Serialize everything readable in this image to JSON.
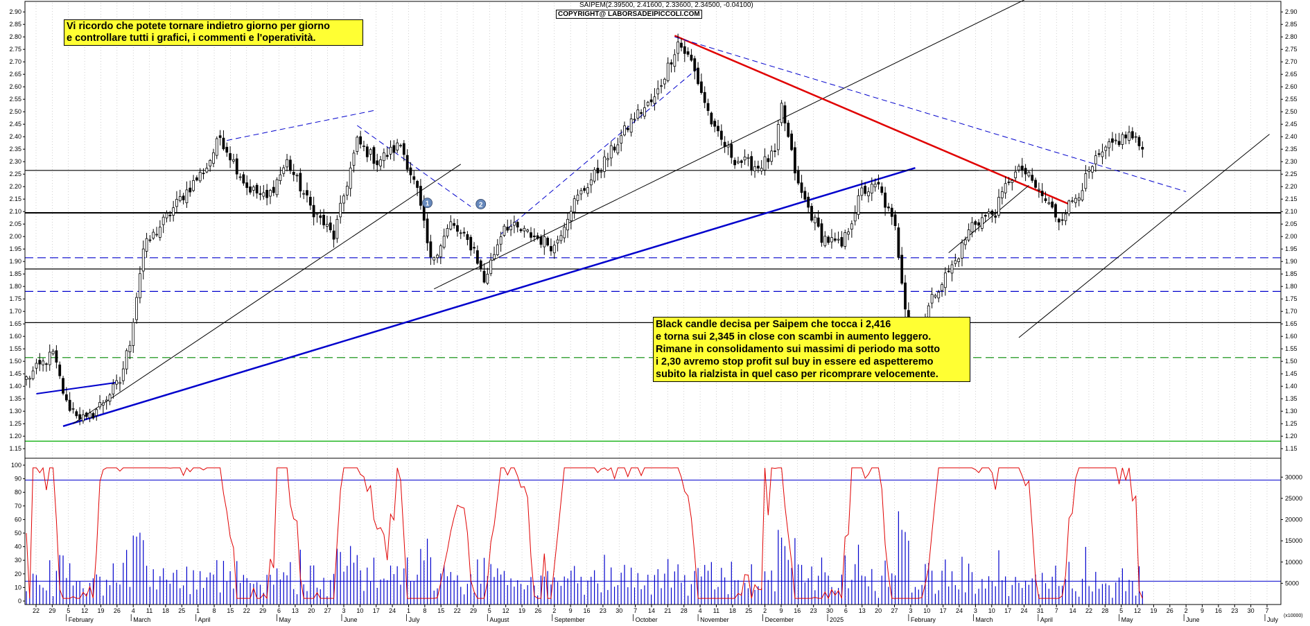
{
  "header": {
    "quote": "SAIPEM(2.39500, 2.41600, 2.33600, 2.34500, -0.04100)",
    "copyright": "COPYRIGHT@ LABORSADEIPICCOLI.COM"
  },
  "notes": {
    "top_line1": "Vi ricordo che potete tornare indietro giorno per giorno",
    "top_line2": "e controllare tutti i grafici, i commenti e l'operatività.",
    "mid_lines": [
      "Black candle decisa per Saipem che tocca i 2,416",
      "e torna sui 2,345 in close con scambi in aumento leggero.",
      "Rimane in consolidamento sui massimi di periodo ma sotto",
      "i 2,30 avremo stop profit sul buy in essere ed aspetteremo",
      "subito la rialzista in quel caso per ricomprare velocemente."
    ]
  },
  "colors": {
    "candle": "#000000",
    "blue_line": "#0000cc",
    "red_line": "#e00000",
    "oscillator": "#e00000",
    "volume": "#0000cc",
    "green_dash": "#008800",
    "green_line": "#00aa00"
  },
  "chart_data": [
    {
      "type": "candlestick",
      "title": "",
      "y_ticks": [
        "2.90",
        "2.85",
        "2.80",
        "2.75",
        "2.70",
        "2.65",
        "2.60",
        "2.55",
        "2.50",
        "2.45",
        "2.40",
        "2.35",
        "2.30",
        "2.25",
        "2.20",
        "2.15",
        "2.10",
        "2.05",
        "2.00",
        "1.95",
        "1.90",
        "1.85",
        "1.80",
        "1.75",
        "1.70",
        "1.65",
        "1.60",
        "1.55",
        "1.50",
        "1.45",
        "1.40",
        "1.35",
        "1.30",
        "1.25",
        "1.20",
        "1.15"
      ],
      "ylim": [
        1.12,
        2.92
      ],
      "x_day_ticks": [
        "22",
        "29",
        "5",
        "12",
        "19",
        "26",
        "4",
        "11",
        "18",
        "25",
        "1",
        "8",
        "15",
        "22",
        "29",
        "6",
        "13",
        "20",
        "27",
        "3",
        "10",
        "17",
        "24",
        "1",
        "8",
        "15",
        "22",
        "29",
        "5",
        "12",
        "19",
        "26",
        "2",
        "9",
        "16",
        "23",
        "30",
        "7",
        "14",
        "21",
        "28",
        "4",
        "11",
        "18",
        "25",
        "2",
        "9",
        "16",
        "23",
        "30",
        "6",
        "13",
        "20",
        "27",
        "3",
        "10",
        "17",
        "24",
        "3",
        "10",
        "17",
        "24",
        "31",
        "7",
        "14",
        "22",
        "28",
        "5",
        "12",
        "19",
        "26",
        "2",
        "9",
        "16",
        "23",
        "30",
        "7"
      ],
      "x_month_labels": [
        "February",
        "March",
        "April",
        "May",
        "June",
        "July",
        "August",
        "September",
        "October",
        "November",
        "December",
        "2025",
        "February",
        "March",
        "April",
        "May",
        "June",
        "July"
      ],
      "horizontal_levels": [
        {
          "price": 2.265,
          "style": "solid",
          "color": "#000000"
        },
        {
          "price": 2.095,
          "style": "solid",
          "color": "#000000",
          "thick": true
        },
        {
          "price": 1.915,
          "style": "dashed",
          "color": "#0000cc"
        },
        {
          "price": 1.87,
          "style": "solid",
          "color": "#000000"
        },
        {
          "price": 1.78,
          "style": "dashed",
          "color": "#0000cc"
        },
        {
          "price": 1.655,
          "style": "solid",
          "color": "#000000"
        },
        {
          "price": 1.515,
          "style": "dashed",
          "color": "#008800"
        },
        {
          "price": 1.18,
          "style": "solid",
          "color": "#00aa00"
        }
      ],
      "trendlines": [
        {
          "from": [
            3,
            1.37
          ],
          "to": [
            27,
            1.415
          ],
          "color": "#0000cc",
          "width": 2
        },
        {
          "from": [
            11,
            1.24
          ],
          "to": [
            266,
            2.275
          ],
          "color": "#0000cc",
          "width": 2.5
        },
        {
          "from": [
            14,
            1.25
          ],
          "to": [
            130,
            2.29
          ],
          "color": "#000000",
          "width": 1
        },
        {
          "from": [
            122,
            1.79
          ],
          "to": [
            305,
            2.99
          ],
          "color": "#000000",
          "width": 1
        },
        {
          "from": [
            194,
            2.805
          ],
          "to": [
            312,
            2.13
          ],
          "color": "#e00000",
          "width": 2.5
        },
        {
          "from": [
            194,
            2.8
          ],
          "to": [
            347,
            2.18
          ],
          "color": "#0000cc",
          "width": 1,
          "dash": true
        },
        {
          "from": [
            60,
            2.385
          ],
          "to": [
            104,
            2.505
          ],
          "color": "#0000cc",
          "width": 1,
          "dash": true
        },
        {
          "from": [
            99,
            2.445
          ],
          "to": [
            133,
            2.12
          ],
          "color": "#0000cc",
          "width": 1,
          "dash": true
        },
        {
          "from": [
            142,
            2.01
          ],
          "to": [
            201,
            2.675
          ],
          "color": "#0000cc",
          "width": 1,
          "dash": true
        },
        {
          "from": [
            276,
            1.935
          ],
          "to": [
            300,
            2.205
          ],
          "color": "#000000",
          "width": 1
        },
        {
          "from": [
            297,
            1.595
          ],
          "to": [
            372,
            2.41
          ],
          "color": "#000000",
          "width": 1
        },
        {
          "from": [
            250,
            2.265
          ],
          "to": [
            285,
            2.265
          ],
          "color": "#000000",
          "width": 1
        }
      ],
      "markers": [
        {
          "label": "1",
          "x": 120,
          "price": 2.135
        },
        {
          "label": "2",
          "x": 136,
          "price": 2.13
        }
      ]
    },
    {
      "type": "line",
      "title": "",
      "y_ticks": [
        "100",
        "90",
        "80",
        "70",
        "60",
        "50",
        "40",
        "30",
        "20",
        "10",
        "0"
      ],
      "ylim": [
        0,
        100
      ],
      "reference_level": 89
    },
    {
      "type": "bar",
      "title": "",
      "y_ticks": [
        "30000",
        "25000",
        "20000",
        "15000",
        "10000",
        "5000"
      ],
      "unit_label": "(x10000)",
      "reference_level": 5500
    }
  ]
}
